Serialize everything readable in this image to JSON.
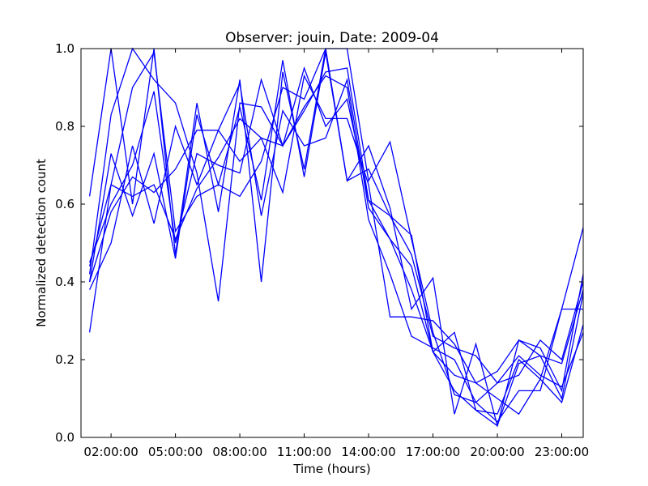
{
  "chart_data": {
    "type": "line",
    "title": "Observer: jouin, Date: 2009-04",
    "xlabel": "Time (hours)",
    "ylabel": "Normalized detection count",
    "x": [
      1,
      2,
      3,
      4,
      5,
      6,
      7,
      8,
      9,
      10,
      11,
      12,
      13,
      14,
      15,
      16,
      17,
      18,
      19,
      20,
      21,
      22,
      23,
      24
    ],
    "xlim": [
      0.6,
      24
    ],
    "ylim": [
      0,
      1
    ],
    "xticks": [
      2,
      5,
      8,
      11,
      14,
      17,
      20,
      23
    ],
    "xtick_labels": [
      "02:00:00",
      "05:00:00",
      "08:00:00",
      "11:00:00",
      "14:00:00",
      "17:00:00",
      "20:00:00",
      "23:00:00"
    ],
    "yticks": [
      0.0,
      0.2,
      0.4,
      0.6,
      0.8,
      1.0
    ],
    "ytick_labels": [
      "0.0",
      "0.2",
      "0.4",
      "0.6",
      "0.8",
      "1.0"
    ],
    "grid": false,
    "line_color": "#0000ff",
    "series": [
      {
        "values": [
          0.62,
          1.0,
          0.6,
          1.0,
          0.47,
          0.86,
          0.58,
          0.92,
          0.4,
          0.94,
          0.69,
          1.0,
          0.66,
          0.69,
          0.57,
          0.52,
          0.22,
          0.27,
          0.07,
          0.03,
          0.25,
          0.21,
          0.19,
          0.38
        ]
      },
      {
        "values": [
          0.42,
          0.83,
          1.0,
          0.92,
          0.86,
          0.68,
          0.35,
          0.86,
          0.85,
          0.75,
          0.84,
          0.94,
          0.95,
          0.61,
          0.51,
          0.44,
          0.22,
          0.16,
          0.14,
          0.17,
          0.25,
          0.23,
          0.12,
          0.42
        ]
      },
      {
        "values": [
          0.4,
          0.73,
          0.57,
          0.73,
          0.46,
          0.83,
          0.65,
          0.85,
          0.61,
          0.97,
          0.67,
          0.99,
          0.66,
          0.75,
          0.59,
          0.33,
          0.41,
          0.06,
          0.24,
          0.03,
          0.19,
          0.21,
          0.1,
          0.37
        ]
      },
      {
        "values": [
          0.27,
          0.65,
          0.9,
          0.99,
          0.53,
          0.62,
          0.65,
          0.62,
          0.71,
          0.9,
          0.87,
          1.0,
          1.0,
          0.66,
          0.76,
          0.51,
          0.27,
          0.11,
          0.09,
          0.04,
          0.12,
          0.12,
          0.33,
          0.54
        ]
      },
      {
        "values": [
          0.38,
          0.5,
          0.75,
          0.55,
          0.8,
          0.65,
          0.79,
          0.71,
          0.77,
          0.63,
          0.93,
          0.82,
          0.82,
          0.65,
          0.31,
          0.31,
          0.3,
          0.24,
          0.14,
          0.1,
          0.06,
          0.15,
          0.09,
          0.29
        ]
      },
      {
        "values": [
          0.4,
          0.58,
          0.67,
          0.63,
          0.69,
          0.79,
          0.79,
          0.91,
          0.57,
          0.84,
          0.75,
          0.77,
          0.92,
          0.59,
          0.51,
          0.38,
          0.22,
          0.12,
          0.07,
          0.06,
          0.2,
          0.15,
          0.33,
          0.33
        ]
      },
      {
        "values": [
          0.44,
          0.65,
          0.62,
          0.65,
          0.51,
          0.64,
          0.72,
          0.82,
          0.77,
          0.75,
          0.85,
          0.93,
          0.9,
          0.56,
          0.42,
          0.26,
          0.23,
          0.2,
          0.09,
          0.14,
          0.21,
          0.16,
          0.13,
          0.27
        ]
      },
      {
        "values": [
          0.45,
          0.6,
          0.7,
          0.89,
          0.5,
          0.73,
          0.7,
          0.68,
          0.92,
          0.75,
          0.95,
          0.8,
          0.87,
          0.61,
          0.57,
          0.47,
          0.26,
          0.23,
          0.21,
          0.14,
          0.16,
          0.25,
          0.2,
          0.4
        ]
      }
    ]
  }
}
